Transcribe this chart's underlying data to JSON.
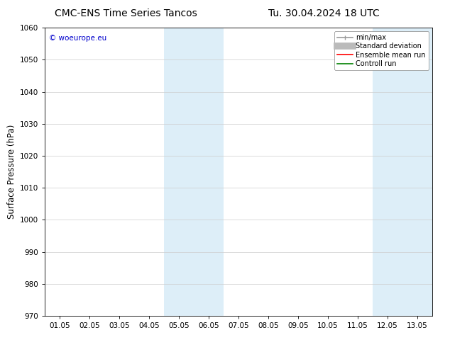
{
  "title_left": "CMC-ENS Time Series Tancos",
  "title_right": "Tu. 30.04.2024 18 UTC",
  "ylabel": "Surface Pressure (hPa)",
  "ylim": [
    970,
    1060
  ],
  "yticks": [
    970,
    980,
    990,
    1000,
    1010,
    1020,
    1030,
    1040,
    1050,
    1060
  ],
  "xtick_labels": [
    "01.05",
    "02.05",
    "03.05",
    "04.05",
    "05.05",
    "06.05",
    "07.05",
    "08.05",
    "09.05",
    "10.05",
    "11.05",
    "12.05",
    "13.05"
  ],
  "xtick_positions": [
    0,
    1,
    2,
    3,
    4,
    5,
    6,
    7,
    8,
    9,
    10,
    11,
    12
  ],
  "xlim": [
    -0.5,
    12.5
  ],
  "shaded_bands": [
    {
      "x_start": 3.5,
      "x_end": 5.5
    },
    {
      "x_start": 10.5,
      "x_end": 12.5
    }
  ],
  "shaded_color": "#ddeef8",
  "background_color": "#ffffff",
  "watermark_text": "© woeurope.eu",
  "watermark_color": "#0000cc",
  "legend_entries": [
    {
      "label": "min/max",
      "color": "#999999",
      "lw": 1.2
    },
    {
      "label": "Standard deviation",
      "color": "#bbbbbb",
      "lw": 7
    },
    {
      "label": "Ensemble mean run",
      "color": "#ff0000",
      "lw": 1.2
    },
    {
      "label": "Controll run",
      "color": "#008000",
      "lw": 1.2
    }
  ],
  "title_fontsize": 10,
  "tick_fontsize": 7.5,
  "ylabel_fontsize": 8.5,
  "watermark_fontsize": 7.5,
  "legend_fontsize": 7
}
